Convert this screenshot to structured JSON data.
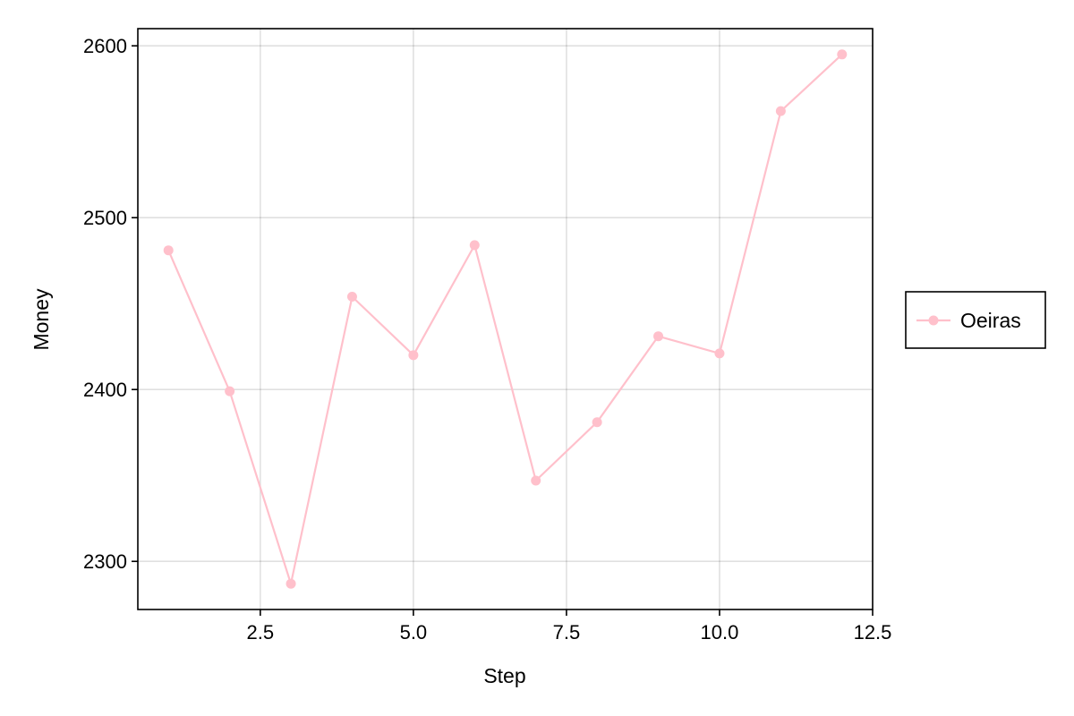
{
  "chart_data": {
    "type": "line",
    "title": "",
    "xlabel": "Step",
    "ylabel": "Money",
    "xlim": [
      0.5,
      12.5
    ],
    "ylim": [
      2272,
      2610
    ],
    "xticks": [
      2.5,
      5.0,
      7.5,
      10.0,
      12.5
    ],
    "xtick_labels": [
      "2.5",
      "5.0",
      "7.5",
      "10.0",
      "12.5"
    ],
    "yticks": [
      2300,
      2400,
      2500,
      2600
    ],
    "ytick_labels": [
      "2300",
      "2400",
      "2500",
      "2600"
    ],
    "grid": true,
    "legend_position": "right",
    "series": [
      {
        "name": "Oeiras",
        "color": "#FFC0CB",
        "marker": "circle",
        "x": [
          1,
          2,
          3,
          4,
          5,
          6,
          7,
          8,
          9,
          10,
          11,
          12
        ],
        "y": [
          2481,
          2399,
          2287,
          2454,
          2420,
          2484,
          2347,
          2381,
          2431,
          2421,
          2562,
          2595
        ]
      }
    ]
  }
}
